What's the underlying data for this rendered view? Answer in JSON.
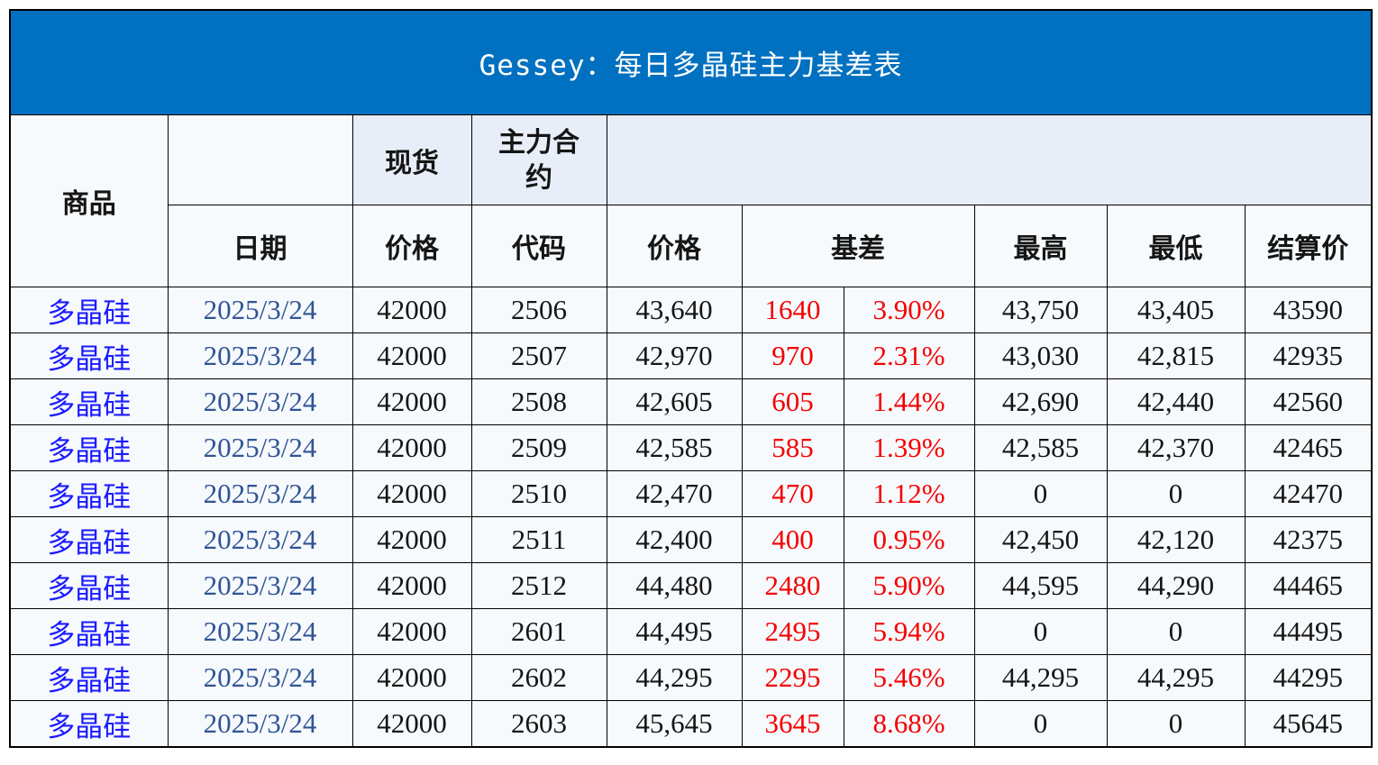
{
  "title": "Gessey：每日多晶硅主力基差表",
  "colors": {
    "title_bar": "#0070C0",
    "title_text": "#FFFFFF",
    "header_light_blue": "#E7EEF8",
    "cell_bg": "#F7FAFD",
    "commodity_text": "#1A1AFF",
    "date_text": "#2F5496",
    "basis_text": "#F40000",
    "number_text": "#151515",
    "border": "#000000"
  },
  "chart_data": {
    "type": "table",
    "title": "Gessey：每日多晶硅主力基差表",
    "headers": {
      "commodity": "商品",
      "spot_group": "现货",
      "main_contract_group": "主力合约",
      "date": "日期",
      "spot_price": "价格",
      "code": "代码",
      "price": "价格",
      "basis": "基差",
      "high": "最高",
      "low": "最低",
      "settle": "结算价"
    },
    "columns": [
      "商品",
      "日期",
      "现货价格",
      "主力合约代码",
      "价格",
      "基差",
      "基差%",
      "最高",
      "最低",
      "结算价"
    ],
    "rows": [
      {
        "commodity": "多晶硅",
        "date": "2025/3/24",
        "spot_price": "42000",
        "code": "2506",
        "price": "43,640",
        "basis": "1640",
        "basis_pct": "3.90%",
        "high": "43,750",
        "low": "43,405",
        "settle": "43590"
      },
      {
        "commodity": "多晶硅",
        "date": "2025/3/24",
        "spot_price": "42000",
        "code": "2507",
        "price": "42,970",
        "basis": "970",
        "basis_pct": "2.31%",
        "high": "43,030",
        "low": "42,815",
        "settle": "42935"
      },
      {
        "commodity": "多晶硅",
        "date": "2025/3/24",
        "spot_price": "42000",
        "code": "2508",
        "price": "42,605",
        "basis": "605",
        "basis_pct": "1.44%",
        "high": "42,690",
        "low": "42,440",
        "settle": "42560"
      },
      {
        "commodity": "多晶硅",
        "date": "2025/3/24",
        "spot_price": "42000",
        "code": "2509",
        "price": "42,585",
        "basis": "585",
        "basis_pct": "1.39%",
        "high": "42,585",
        "low": "42,370",
        "settle": "42465"
      },
      {
        "commodity": "多晶硅",
        "date": "2025/3/24",
        "spot_price": "42000",
        "code": "2510",
        "price": "42,470",
        "basis": "470",
        "basis_pct": "1.12%",
        "high": "0",
        "low": "0",
        "settle": "42470"
      },
      {
        "commodity": "多晶硅",
        "date": "2025/3/24",
        "spot_price": "42000",
        "code": "2511",
        "price": "42,400",
        "basis": "400",
        "basis_pct": "0.95%",
        "high": "42,450",
        "low": "42,120",
        "settle": "42375"
      },
      {
        "commodity": "多晶硅",
        "date": "2025/3/24",
        "spot_price": "42000",
        "code": "2512",
        "price": "44,480",
        "basis": "2480",
        "basis_pct": "5.90%",
        "high": "44,595",
        "low": "44,290",
        "settle": "44465"
      },
      {
        "commodity": "多晶硅",
        "date": "2025/3/24",
        "spot_price": "42000",
        "code": "2601",
        "price": "44,495",
        "basis": "2495",
        "basis_pct": "5.94%",
        "high": "0",
        "low": "0",
        "settle": "44495"
      },
      {
        "commodity": "多晶硅",
        "date": "2025/3/24",
        "spot_price": "42000",
        "code": "2602",
        "price": "44,295",
        "basis": "2295",
        "basis_pct": "5.46%",
        "high": "44,295",
        "low": "44,295",
        "settle": "44295"
      },
      {
        "commodity": "多晶硅",
        "date": "2025/3/24",
        "spot_price": "42000",
        "code": "2603",
        "price": "45,645",
        "basis": "3645",
        "basis_pct": "8.68%",
        "high": "0",
        "low": "0",
        "settle": "45645"
      }
    ]
  }
}
